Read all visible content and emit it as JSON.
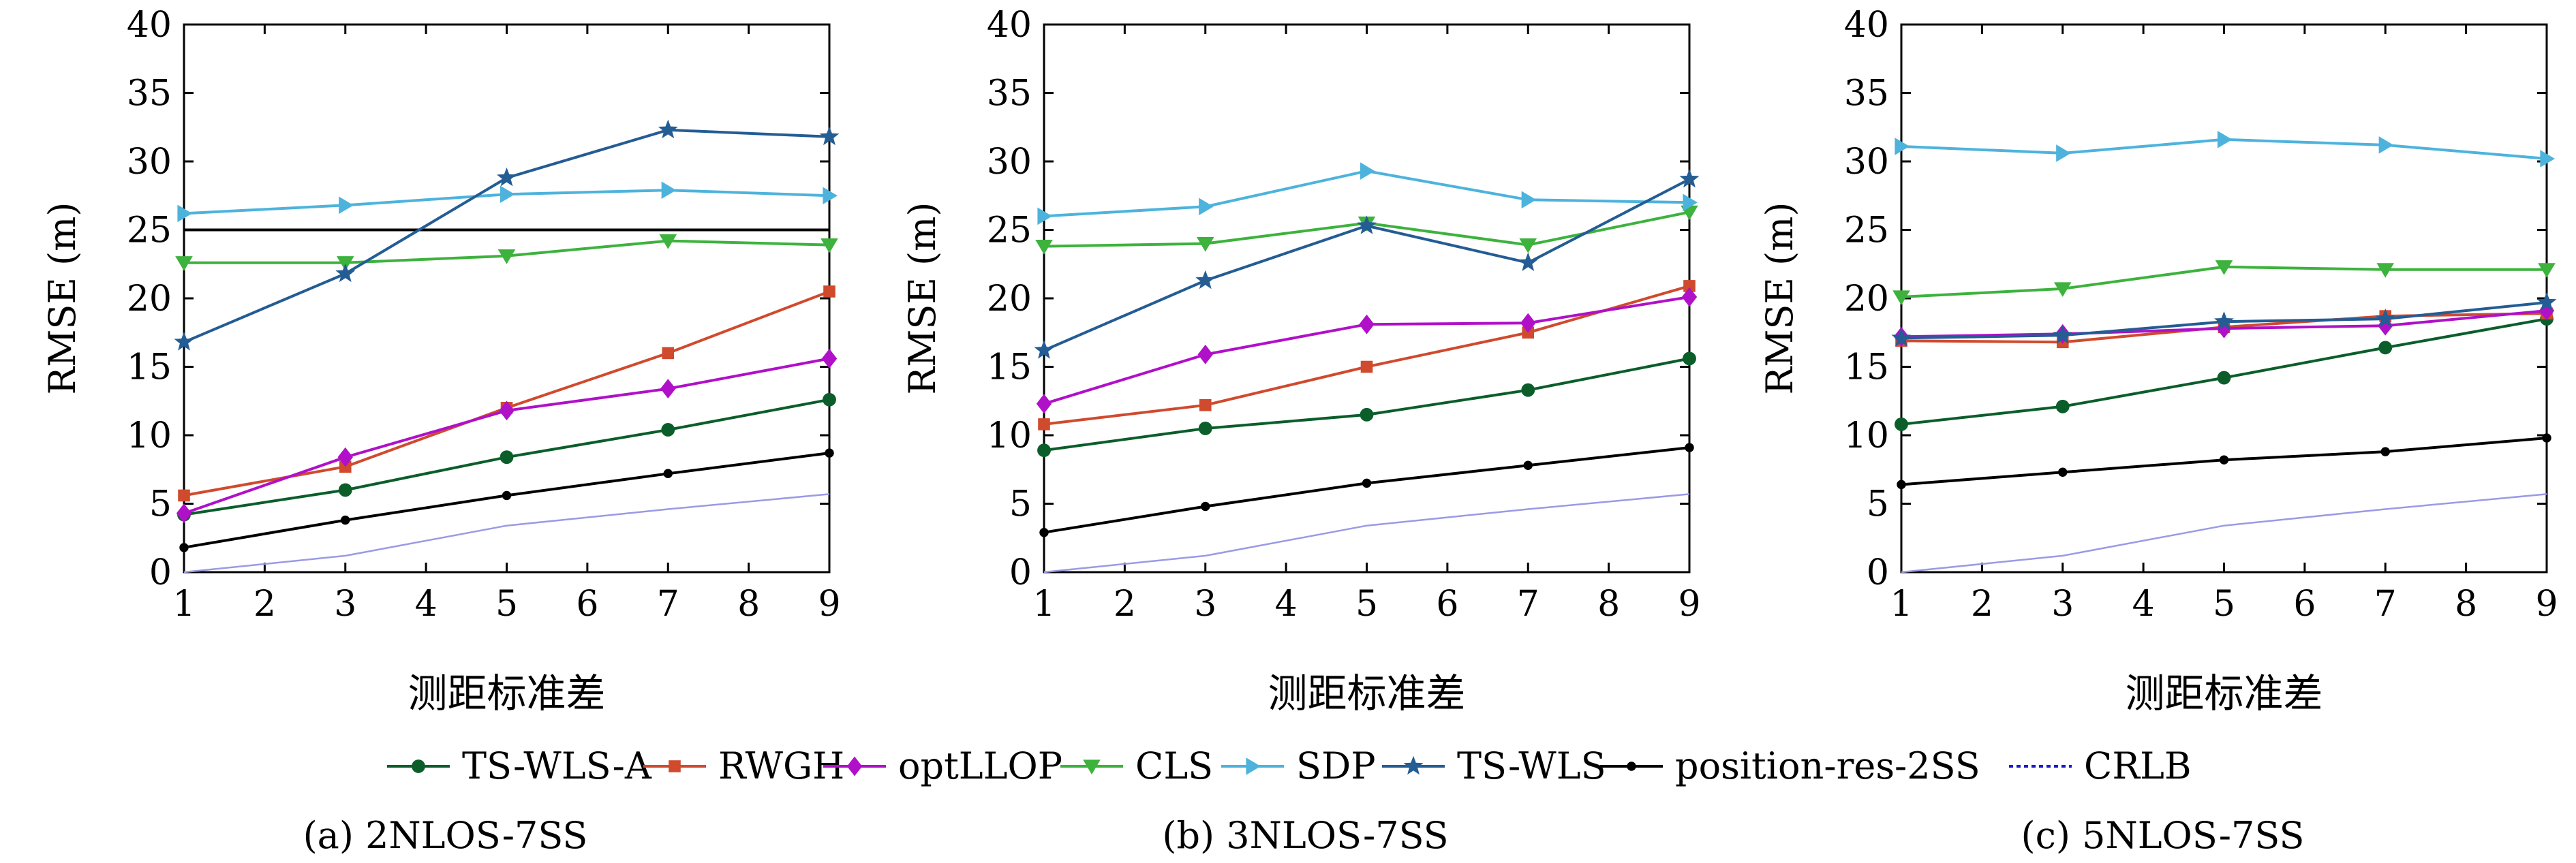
{
  "chart_data": [
    {
      "type": "line",
      "caption": "(a) 2NLOS-7SS",
      "xlabel": "测距标准差",
      "ylabel": "RMSE (m)",
      "xlim": [
        1,
        9
      ],
      "ylim": [
        0,
        40
      ],
      "xticks": [
        "1",
        "2",
        "3",
        "4",
        "5",
        "6",
        "7",
        "8",
        "9"
      ],
      "yticks": [
        "0",
        "5",
        "10",
        "15",
        "20",
        "25",
        "30",
        "35",
        "40"
      ],
      "x": [
        1,
        3,
        5,
        7,
        9
      ],
      "hline": 25,
      "series": [
        {
          "name": "TS-WLS-A",
          "values": [
            4.2,
            6.0,
            8.4,
            10.4,
            12.6
          ]
        },
        {
          "name": "RWGH",
          "values": [
            5.6,
            7.7,
            12.0,
            16.0,
            20.5
          ]
        },
        {
          "name": "optLLOP",
          "values": [
            4.3,
            8.4,
            11.8,
            13.4,
            15.6
          ]
        },
        {
          "name": "CLS",
          "values": [
            22.6,
            22.6,
            23.1,
            24.2,
            23.9
          ]
        },
        {
          "name": "SDP",
          "values": [
            26.2,
            26.8,
            27.6,
            27.9,
            27.5
          ]
        },
        {
          "name": "TS-WLS",
          "values": [
            16.8,
            21.8,
            28.8,
            32.3,
            31.8
          ]
        },
        {
          "name": "position-res-2SS",
          "values": [
            1.8,
            3.8,
            5.6,
            7.2,
            8.7
          ]
        },
        {
          "name": "CRLB",
          "values": [
            0.0,
            1.2,
            3.4,
            4.6,
            5.7
          ]
        }
      ]
    },
    {
      "type": "line",
      "caption": "(b) 3NLOS-7SS",
      "xlabel": "测距标准差",
      "ylabel": "RMSE (m)",
      "xlim": [
        1,
        9
      ],
      "ylim": [
        0,
        40
      ],
      "xticks": [
        "1",
        "2",
        "3",
        "4",
        "5",
        "6",
        "7",
        "8",
        "9"
      ],
      "yticks": [
        "0",
        "5",
        "10",
        "15",
        "20",
        "25",
        "30",
        "35",
        "40"
      ],
      "x": [
        1,
        3,
        5,
        7,
        9
      ],
      "series": [
        {
          "name": "TS-WLS-A",
          "values": [
            8.9,
            10.5,
            11.5,
            13.3,
            15.6
          ]
        },
        {
          "name": "RWGH",
          "values": [
            10.8,
            12.2,
            15.0,
            17.5,
            20.9
          ]
        },
        {
          "name": "optLLOP",
          "values": [
            12.3,
            15.9,
            18.1,
            18.2,
            20.1
          ]
        },
        {
          "name": "CLS",
          "values": [
            23.8,
            24.0,
            25.5,
            23.9,
            26.3
          ]
        },
        {
          "name": "SDP",
          "values": [
            26.0,
            26.7,
            29.3,
            27.2,
            27.0
          ]
        },
        {
          "name": "TS-WLS",
          "values": [
            16.2,
            21.3,
            25.3,
            22.6,
            28.7
          ]
        },
        {
          "name": "position-res-2SS",
          "values": [
            2.9,
            4.8,
            6.5,
            7.8,
            9.1
          ]
        },
        {
          "name": "CRLB",
          "values": [
            0.0,
            1.2,
            3.4,
            4.6,
            5.7
          ]
        }
      ]
    },
    {
      "type": "line",
      "caption": "(c) 5NLOS-7SS",
      "xlabel": "测距标准差",
      "ylabel": "RMSE (m)",
      "xlim": [
        1,
        9
      ],
      "ylim": [
        0,
        40
      ],
      "xticks": [
        "1",
        "2",
        "3",
        "4",
        "5",
        "6",
        "7",
        "8",
        "9"
      ],
      "yticks": [
        "0",
        "5",
        "10",
        "15",
        "20",
        "25",
        "30",
        "35",
        "40"
      ],
      "x": [
        1,
        3,
        5,
        7,
        9
      ],
      "series": [
        {
          "name": "TS-WLS-A",
          "values": [
            10.8,
            12.1,
            14.2,
            16.4,
            18.5
          ]
        },
        {
          "name": "RWGH",
          "values": [
            16.9,
            16.8,
            17.9,
            18.7,
            18.9
          ]
        },
        {
          "name": "optLLOP",
          "values": [
            17.2,
            17.4,
            17.8,
            18.0,
            19.1
          ]
        },
        {
          "name": "CLS",
          "values": [
            20.1,
            20.7,
            22.3,
            22.1,
            22.1
          ]
        },
        {
          "name": "SDP",
          "values": [
            31.1,
            30.6,
            31.6,
            31.2,
            30.2
          ]
        },
        {
          "name": "TS-WLS",
          "values": [
            17.1,
            17.3,
            18.3,
            18.5,
            19.7
          ]
        },
        {
          "name": "position-res-2SS",
          "values": [
            6.4,
            7.3,
            8.2,
            8.8,
            9.8
          ]
        },
        {
          "name": "CRLB",
          "values": [
            0.0,
            1.2,
            3.4,
            4.6,
            5.7
          ]
        }
      ]
    }
  ],
  "legend": {
    "placement": "bottom",
    "entries": [
      {
        "name": "TS-WLS-A",
        "color": "#0b5e2a",
        "marker": "circle",
        "dashed": false
      },
      {
        "name": "RWGH",
        "color": "#d04a2e",
        "marker": "square",
        "dashed": false
      },
      {
        "name": "optLLOP",
        "color": "#b010c8",
        "marker": "diamond",
        "dashed": false
      },
      {
        "name": "CLS",
        "color": "#3db23d",
        "marker": "triangle-down",
        "dashed": false
      },
      {
        "name": "SDP",
        "color": "#4db3dc",
        "marker": "triangle-right",
        "dashed": false
      },
      {
        "name": "TS-WLS",
        "color": "#245c94",
        "marker": "star",
        "dashed": false
      },
      {
        "name": "position-res-2SS",
        "color": "#000000",
        "marker": "dot",
        "dashed": false
      },
      {
        "name": "CRLB",
        "color": "#1a1ad0",
        "marker": "none",
        "dashed": true
      }
    ]
  },
  "crlb_line_color": "#9a9ae6"
}
